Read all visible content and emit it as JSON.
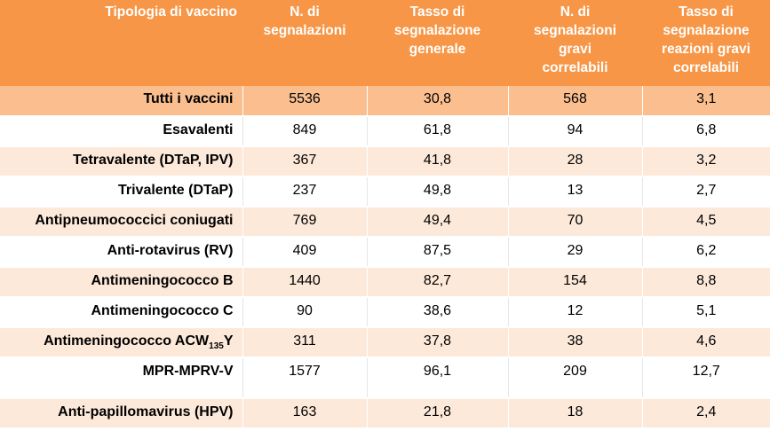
{
  "table": {
    "headers": [
      "Tipologia di vaccino",
      "N. di segnalazioni",
      "Tasso di segnalazione generale",
      "N. di segnalazioni gravi correlabili",
      "Tasso di segnalazione reazioni gravi correlabili"
    ],
    "header_lines": [
      [
        "Tipologia di vaccino"
      ],
      [
        "N. di",
        "segnalazioni"
      ],
      [
        "Tasso di",
        "segnalazione",
        "generale"
      ],
      [
        "N. di",
        "segnalazioni",
        "gravi",
        "correlabili"
      ],
      [
        "Tasso di",
        "segnalazione",
        "reazioni gravi",
        "correlabili"
      ]
    ],
    "rows": [
      {
        "label": "Tutti i vaccini",
        "segnalazioni": "5536",
        "tasso_generale": "30,8",
        "gravi": "568",
        "tasso_gravi": "3,1"
      },
      {
        "label": "Esavalenti",
        "segnalazioni": "849",
        "tasso_generale": "61,8",
        "gravi": "94",
        "tasso_gravi": "6,8"
      },
      {
        "label": "Tetravalente (DTaP, IPV)",
        "segnalazioni": "367",
        "tasso_generale": "41,8",
        "gravi": "28",
        "tasso_gravi": "3,2"
      },
      {
        "label": "Trivalente (DTaP)",
        "segnalazioni": "237",
        "tasso_generale": "49,8",
        "gravi": "13",
        "tasso_gravi": "2,7"
      },
      {
        "label": "Antipneumococcici coniugati",
        "segnalazioni": "769",
        "tasso_generale": "49,4",
        "gravi": "70",
        "tasso_gravi": "4,5"
      },
      {
        "label": "Anti-rotavirus (RV)",
        "segnalazioni": "409",
        "tasso_generale": "87,5",
        "gravi": "29",
        "tasso_gravi": "6,2"
      },
      {
        "label": "Antimeningococco B",
        "segnalazioni": "1440",
        "tasso_generale": "82,7",
        "gravi": "154",
        "tasso_gravi": "8,8"
      },
      {
        "label": "Antimeningococco C",
        "segnalazioni": "90",
        "tasso_generale": "38,6",
        "gravi": "12",
        "tasso_gravi": "5,1"
      },
      {
        "label": "Antimeningococco ACW",
        "label_sub": "135",
        "label_suffix": "Y",
        "segnalazioni": "311",
        "tasso_generale": "37,8",
        "gravi": "38",
        "tasso_gravi": "4,6"
      },
      {
        "label": "MPR-MPRV-V",
        "segnalazioni": "1577",
        "tasso_generale": "96,1",
        "gravi": "209",
        "tasso_gravi": "12,7"
      },
      {
        "label": "Anti-papillomavirus (HPV)",
        "segnalazioni": "163",
        "tasso_generale": "21,8",
        "gravi": "18",
        "tasso_gravi": "2,4"
      }
    ]
  },
  "colors": {
    "header_bg": "#f79646",
    "total_row_bg": "#fbbf8f",
    "light_row_bg": "#fde9d9",
    "white_row_bg": "#ffffff"
  }
}
